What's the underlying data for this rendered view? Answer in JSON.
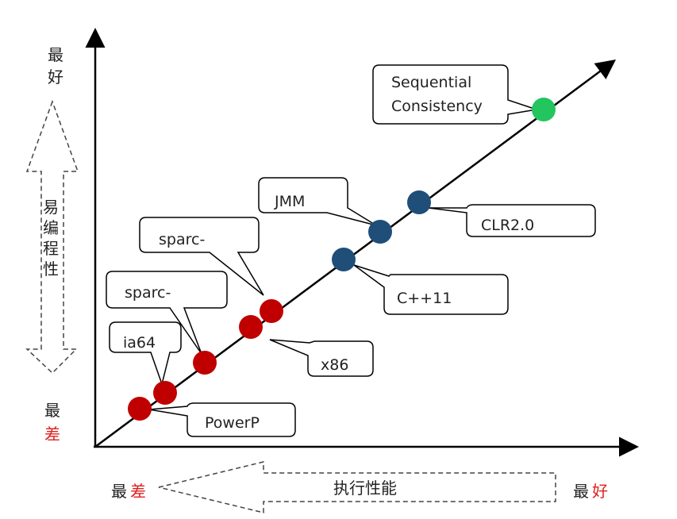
{
  "y_axis": {
    "top_label": [
      "最",
      "好"
    ],
    "middle_label": [
      "易",
      "编",
      "程",
      "性"
    ],
    "bottom_label": [
      "最",
      "差"
    ]
  },
  "x_axis": {
    "left_label": [
      "最",
      "差"
    ],
    "middle_label": "执行性能",
    "right_label": [
      "最",
      "好"
    ]
  },
  "callouts": {
    "sequential": [
      "Sequential",
      "Consistency"
    ],
    "jmm": "JMM",
    "clr": "CLR2.0",
    "cpp11": "C++11",
    "sparc1": "sparc-",
    "sparc2": "sparc-",
    "x86": "x86",
    "ia64": "ia64",
    "powerp": "PowerP"
  },
  "colors": {
    "red": "#c00000",
    "blue": "#1f4e79",
    "green": "#22c55e",
    "accent_red": "#e02020"
  }
}
